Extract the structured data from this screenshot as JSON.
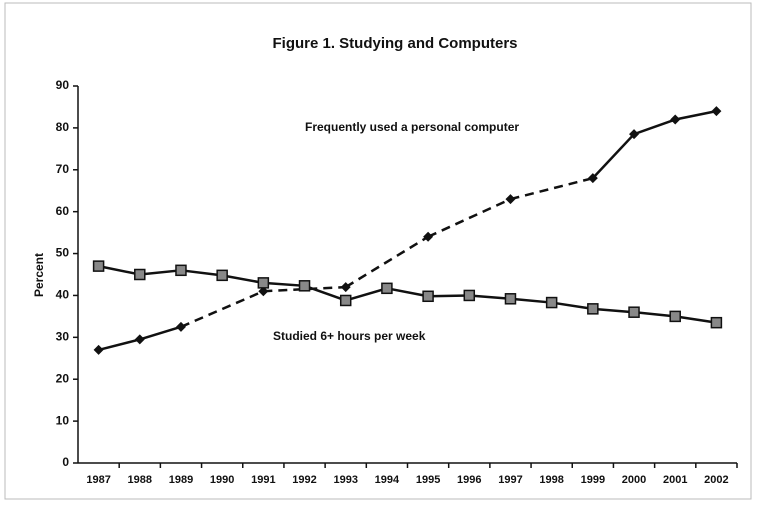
{
  "chart_data": {
    "type": "line",
    "title": "Figure 1. Studying and Computers",
    "y_label": "Percent",
    "categories": [
      "1987",
      "1988",
      "1989",
      "1990",
      "1991",
      "1992",
      "1993",
      "1994",
      "1995",
      "1996",
      "1997",
      "1998",
      "1999",
      "2000",
      "2001",
      "2002"
    ],
    "series": [
      {
        "name": "Frequently used a personal computer",
        "color": "#111111",
        "marker": "diamond",
        "values": [
          27,
          29.5,
          32.5,
          null,
          41,
          null,
          42,
          null,
          54,
          null,
          63,
          null,
          68,
          78.5,
          82,
          84
        ]
      },
      {
        "name": "Studied 6+ hours per week",
        "color": "#111111",
        "marker": "square",
        "values": [
          47,
          45,
          46,
          44.8,
          43,
          42.3,
          38.8,
          41.7,
          39.8,
          40,
          39.2,
          38.3,
          36.8,
          36,
          35,
          33.5
        ]
      }
    ],
    "ylim": [
      0,
      90
    ],
    "yticks": [
      0,
      10,
      20,
      30,
      40,
      50,
      60,
      70,
      80,
      90
    ],
    "grid": false
  }
}
